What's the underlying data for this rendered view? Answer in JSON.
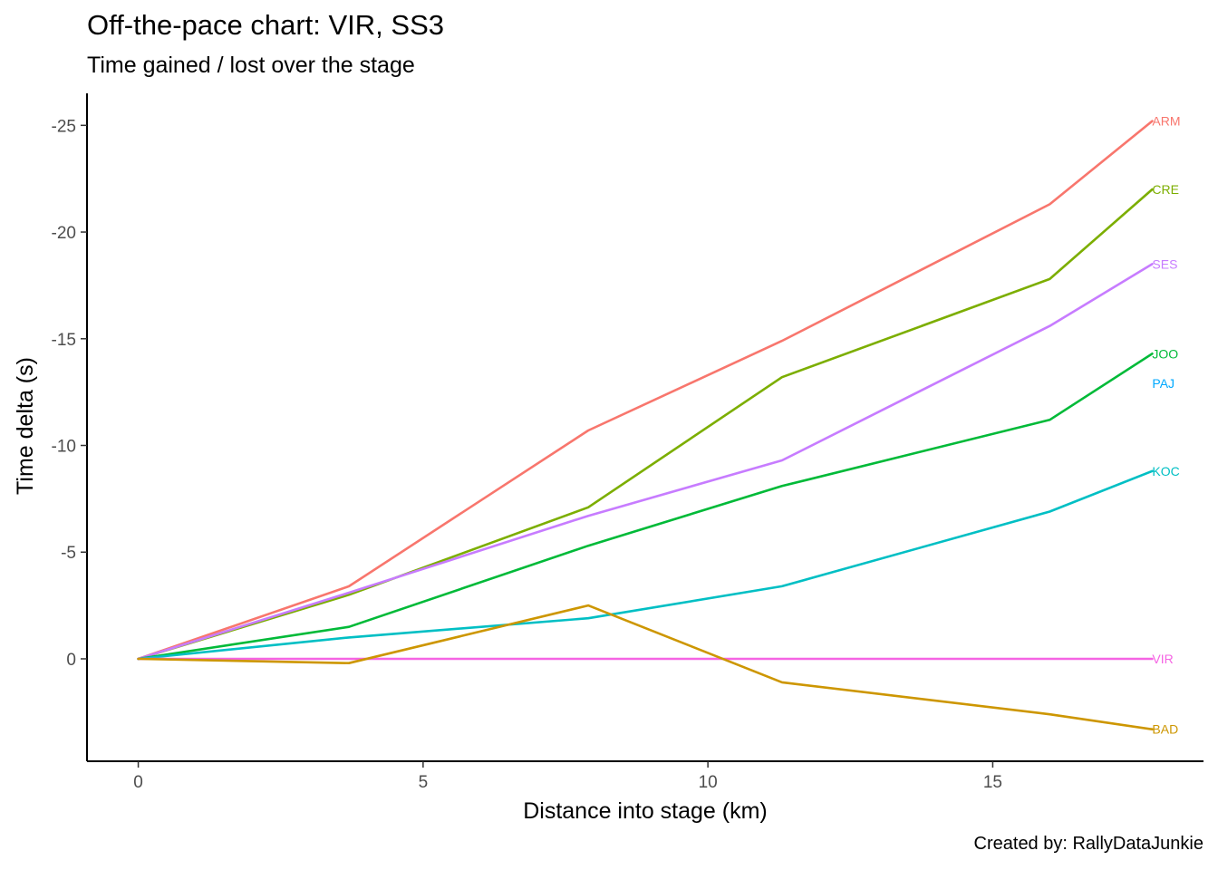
{
  "chart_data": {
    "type": "line",
    "title": "Off-the-pace chart: VIR, SS3",
    "subtitle": "Time gained / lost over the stage",
    "caption": "Created by: RallyDataJunkie",
    "xlabel": "Distance into stage (km)",
    "ylabel": "Time delta (s)",
    "xlim": [
      -0.9,
      18.7
    ],
    "ylim": [
      4.8,
      -26.5
    ],
    "y_axis_reversed": true,
    "x_ticks": [
      0,
      5,
      10,
      15
    ],
    "x_tick_labels": [
      "0",
      "5",
      "10",
      "15"
    ],
    "y_ticks": [
      -25,
      -20,
      -15,
      -10,
      -5,
      0
    ],
    "y_tick_labels": [
      "-25",
      "-20",
      "-15",
      "-10",
      "-5",
      "0"
    ],
    "grid": false,
    "legend": "none (direct end-of-line labels)",
    "x": [
      0,
      3.7,
      7.9,
      11.3,
      16.0,
      17.8
    ],
    "series": [
      {
        "name": "ARM",
        "color": "#F8766D",
        "values": [
          0,
          -3.4,
          -10.7,
          -14.9,
          -21.3,
          -25.2
        ]
      },
      {
        "name": "CRE",
        "color": "#7CAE00",
        "values": [
          0,
          -3.0,
          -7.1,
          -13.2,
          -17.8,
          -22.0
        ]
      },
      {
        "name": "SES",
        "color": "#C77CFF",
        "values": [
          0,
          -3.1,
          -6.7,
          -9.3,
          -15.6,
          -18.5
        ]
      },
      {
        "name": "JOO",
        "color": "#00BA38",
        "values": [
          0,
          -1.5,
          -5.3,
          -8.1,
          -11.2,
          -14.3
        ]
      },
      {
        "name": "PAJ",
        "color": "#00A9FF",
        "values": [
          null,
          null,
          null,
          null,
          null,
          -12.9
        ]
      },
      {
        "name": "KOC",
        "color": "#00BFC4",
        "values": [
          0,
          -1.0,
          -1.9,
          -3.4,
          -6.9,
          -8.8
        ]
      },
      {
        "name": "VIR",
        "color": "#F564E3",
        "values": [
          0,
          0,
          0,
          0,
          0,
          0
        ]
      },
      {
        "name": "BAD",
        "color": "#CD9600",
        "values": [
          0,
          0.2,
          -2.5,
          1.1,
          2.6,
          3.3
        ]
      }
    ]
  }
}
